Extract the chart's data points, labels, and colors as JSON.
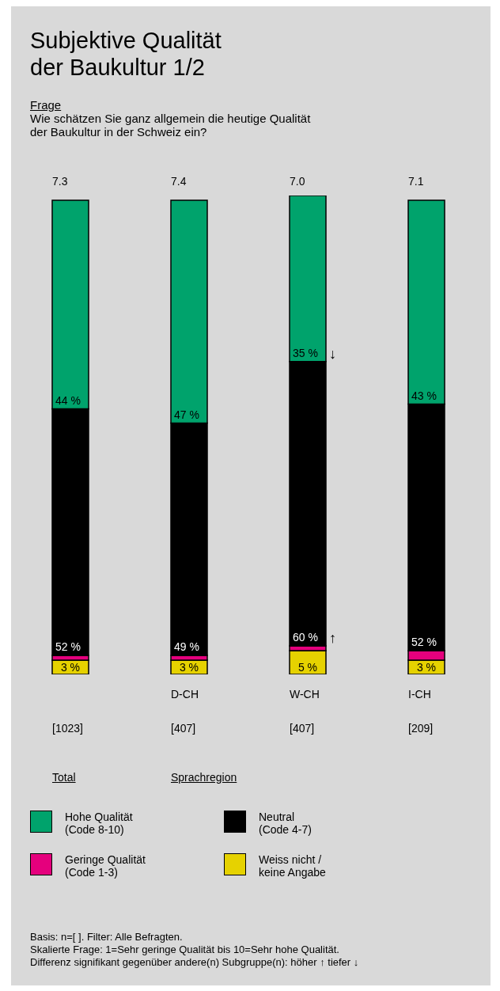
{
  "chart_data": {
    "type": "bar",
    "stacked": true,
    "title": "Subjektive Qualität\nder Baukultur 1/2",
    "subtitle": "Frage\nWie schätzen Sie ganz allgemein die heutige Qualität\nder Baukultur in der Schweiz ein?",
    "categories": [
      null,
      "D-CH",
      "W-CH",
      "I-CH"
    ],
    "series": [
      {
        "name": "Weiss nicht /\nkeine Angabe",
        "color": "#e6d200",
        "values": [
          3,
          3,
          5,
          3
        ],
        "value_labels": [
          "3 %",
          "3 %",
          "5 %",
          "3 %"
        ]
      },
      {
        "name": "Geringe Qualität\n(Code 1-3)",
        "color": "#e5007d",
        "values": [
          1,
          1,
          1,
          2
        ],
        "value_labels": [
          null,
          null,
          null,
          null
        ]
      },
      {
        "name": "Neutral\n(Code 4-7)",
        "color": "#000000",
        "values": [
          52,
          49,
          60,
          52
        ],
        "value_labels": [
          "52 %",
          "49 %",
          "60 %",
          "52 %"
        ]
      },
      {
        "name": "Hohe Qualität\n(Code 8-10)",
        "color": "#00a36c",
        "values": [
          44,
          47,
          35,
          43
        ],
        "value_labels": [
          "44 %",
          "47 %",
          "35 %",
          "43 %"
        ]
      }
    ],
    "annotations": [
      "7.3",
      "7.4",
      "7.0",
      "7.1",
      "[1023]",
      "[407]",
      "[407]",
      "[209]",
      "Total",
      "Sprachregion",
      {
        "text": "↓",
        "x": "W-CH",
        "y": 66
      },
      {
        "text": "↑",
        "x": "W-CH",
        "y": 6
      },
      "Basis: n=[ ]. Filter: Alle Befragten.\nSkalierte Frage: 1=Sehr geringe Qualität bis 10=Sehr hohe Qualität.\nDifferenz signifikant gegenüber andere(n) Subgruppe(n): höher ↑ tiefer ↓"
    ],
    "legend": "bottom"
  }
}
